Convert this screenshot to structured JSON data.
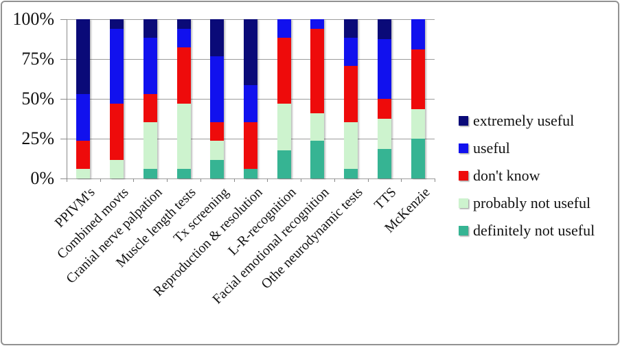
{
  "chart_data": {
    "type": "bar",
    "subtype": "100-percent-stacked-column",
    "title": "",
    "categories": [
      "PPIVM's",
      "Combined movts",
      "Cranial nerve palpation",
      "Muscle length tests",
      "Tx screening",
      "Reproduction & resolution",
      "L-R-recognition",
      "Facial emotional recognition",
      "Othe neurodynamic tests",
      "TTS",
      "McKenzie"
    ],
    "series": [
      {
        "name": "definitely not useful",
        "color": "#36B493",
        "values": [
          0,
          0,
          5.9,
          5.9,
          11.8,
          5.9,
          17.6,
          23.5,
          5.9,
          18.75,
          25
        ]
      },
      {
        "name": "probably not useful",
        "color": "#CDF3CE",
        "values": [
          5.9,
          11.8,
          29.4,
          41.2,
          11.8,
          0,
          29.4,
          17.6,
          29.4,
          18.75,
          18.75
        ]
      },
      {
        "name": "don't know",
        "color": "#EE0B0B",
        "values": [
          17.6,
          35.3,
          17.6,
          35.3,
          11.8,
          29.4,
          41.2,
          52.9,
          35.3,
          12.5,
          37.5
        ]
      },
      {
        "name": "useful",
        "color": "#1111EE",
        "values": [
          29.4,
          47.1,
          35.3,
          11.8,
          41.2,
          23.5,
          11.8,
          5.9,
          17.6,
          37.5,
          18.75
        ]
      },
      {
        "name": "extremely useful",
        "color": "#0A0A78",
        "values": [
          47.1,
          5.9,
          11.8,
          5.9,
          23.5,
          41.2,
          0,
          0,
          11.8,
          12.5,
          0
        ]
      }
    ],
    "stack_order_bottom_to_top": [
      "definitely not useful",
      "probably not useful",
      "don't know",
      "useful",
      "extremely useful"
    ],
    "y_axis": {
      "tick_labels": [
        "100%",
        "75%",
        "50%",
        "25%",
        "0%"
      ],
      "tick_values": [
        100,
        75,
        50,
        25,
        0
      ],
      "range": [
        0,
        100
      ],
      "gridlines": true
    },
    "x_axis": {
      "label_rotation_deg": 45
    },
    "legend": {
      "position": "right",
      "items_top_to_bottom": [
        "extremely useful",
        "useful",
        "don't know",
        "probably not useful",
        "definitely not useful"
      ]
    }
  }
}
